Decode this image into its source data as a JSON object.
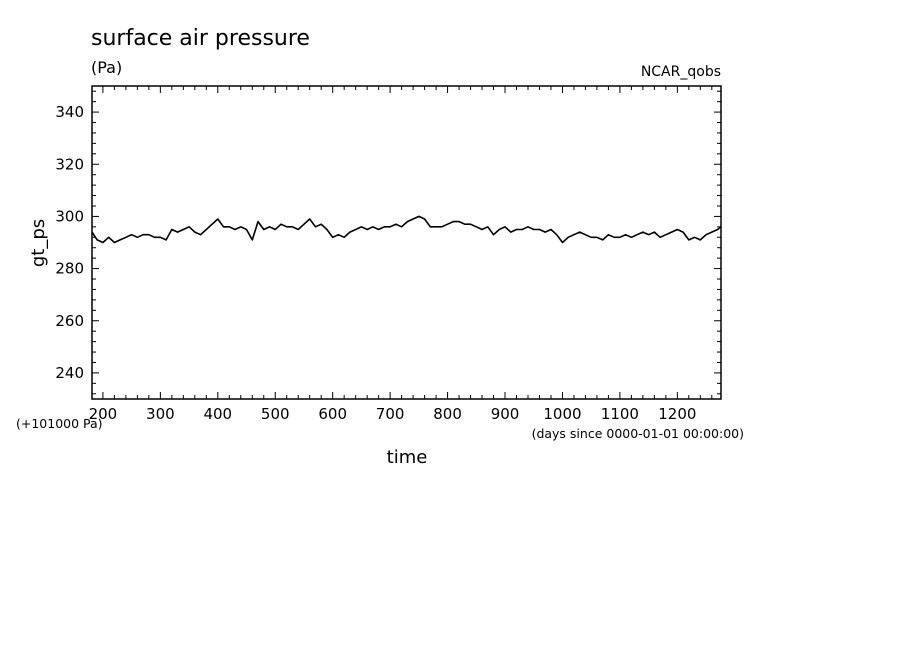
{
  "chart_data": {
    "type": "line",
    "title": "surface air pressure",
    "units": "(Pa)",
    "source": "NCAR_qobs",
    "xlabel": "time",
    "ylabel": "gt_ps",
    "x_note": "(days since 0000-01-01 00:00:00)",
    "y_note": "(+101000 Pa)",
    "xlim": [
      181,
      1276
    ],
    "ylim": [
      230,
      350
    ],
    "x_ticks": [
      200,
      300,
      400,
      500,
      600,
      700,
      800,
      900,
      1000,
      1100,
      1200
    ],
    "x_tick_labels": [
      "200",
      "300",
      "400",
      "500",
      "600",
      "700",
      "800",
      "900",
      "1000",
      "1100",
      "1200"
    ],
    "y_ticks": [
      240,
      260,
      280,
      300,
      320,
      340
    ],
    "y_tick_labels": [
      "240",
      "260",
      "280",
      "300",
      "320",
      "340"
    ],
    "series": [
      {
        "x": [
          181,
          190,
          200,
          210,
          220,
          230,
          240,
          250,
          260,
          270,
          280,
          290,
          300,
          310,
          320,
          330,
          340,
          350,
          360,
          370,
          380,
          390,
          400,
          410,
          420,
          430,
          440,
          450,
          460,
          470,
          480,
          490,
          500,
          510,
          520,
          530,
          540,
          550,
          560,
          570,
          580,
          590,
          600,
          610,
          620,
          630,
          640,
          650,
          660,
          670,
          680,
          690,
          700,
          710,
          720,
          730,
          740,
          750,
          760,
          770,
          780,
          790,
          800,
          810,
          820,
          830,
          840,
          850,
          860,
          870,
          880,
          890,
          900,
          910,
          920,
          930,
          940,
          950,
          960,
          970,
          980,
          990,
          1000,
          1010,
          1020,
          1030,
          1040,
          1050,
          1060,
          1070,
          1080,
          1090,
          1100,
          1110,
          1120,
          1130,
          1140,
          1150,
          1160,
          1170,
          1180,
          1190,
          1200,
          1210,
          1220,
          1230,
          1240,
          1250,
          1260,
          1270,
          1276
        ],
        "y": [
          294,
          291,
          290,
          292,
          290,
          291,
          292,
          293,
          292,
          293,
          293,
          292,
          292,
          291,
          295,
          294,
          295,
          296,
          294,
          293,
          295,
          297,
          299,
          296,
          296,
          295,
          296,
          295,
          291,
          298,
          295,
          296,
          295,
          297,
          296,
          296,
          295,
          297,
          299,
          296,
          297,
          295,
          292,
          293,
          292,
          294,
          295,
          296,
          295,
          296,
          295,
          296,
          296,
          297,
          296,
          298,
          299,
          300,
          299,
          296,
          296,
          296,
          297,
          298,
          298,
          297,
          297,
          296,
          295,
          296,
          293,
          295,
          296,
          294,
          295,
          295,
          296,
          295,
          295,
          294,
          295,
          293,
          290,
          292,
          293,
          294,
          293,
          292,
          292,
          291,
          293,
          292,
          292,
          293,
          292,
          293,
          294,
          293,
          294,
          292,
          293,
          294,
          295,
          294,
          291,
          292,
          291,
          293,
          294,
          295,
          296
        ]
      }
    ]
  }
}
